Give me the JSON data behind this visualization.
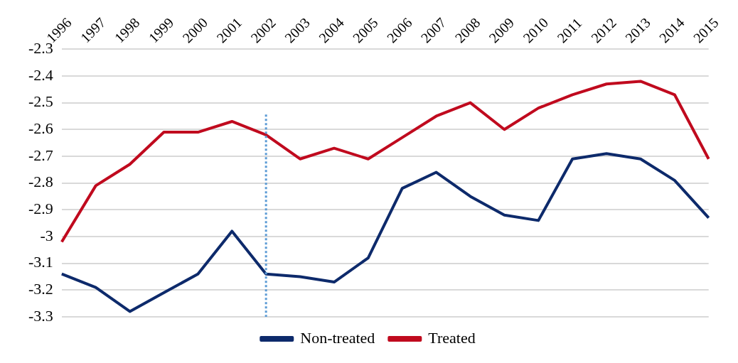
{
  "chart_data": {
    "type": "line",
    "categories": [
      "1996",
      "1997",
      "1998",
      "1999",
      "2000",
      "2001",
      "2002",
      "2003",
      "2004",
      "2005",
      "2006",
      "2007",
      "2008",
      "2009",
      "2010",
      "2011",
      "2012",
      "2013",
      "2014",
      "2015"
    ],
    "series": [
      {
        "name": "Non-treated",
        "color": "#0d2a6b",
        "values": [
          -3.14,
          -3.19,
          -3.28,
          -3.21,
          -3.14,
          -2.98,
          -3.14,
          -3.15,
          -3.17,
          -3.08,
          -2.82,
          -2.76,
          -2.85,
          -2.92,
          -2.94,
          -2.71,
          -2.69,
          -2.71,
          -2.79,
          -2.93
        ]
      },
      {
        "name": "Treated",
        "color": "#c00a1e",
        "values": [
          -3.02,
          -2.81,
          -2.73,
          -2.61,
          -2.61,
          -2.57,
          -2.62,
          -2.71,
          -2.67,
          -2.71,
          -2.63,
          -2.55,
          -2.5,
          -2.6,
          -2.52,
          -2.47,
          -2.43,
          -2.42,
          -2.47,
          -2.71
        ]
      }
    ],
    "ylim": [
      -3.3,
      -2.3
    ],
    "yticks": [
      -3.3,
      -3.2,
      -3.1,
      -3,
      -2.9,
      -2.8,
      -2.7,
      -2.6,
      -2.5,
      -2.4,
      -2.3
    ],
    "ref_lines": [
      {
        "axis": "x",
        "value": "2002",
        "color": "#5b9bd5",
        "line_style": "dotted"
      }
    ],
    "grid": "y",
    "legend": "bottom",
    "marker": "none",
    "line_style": "solid"
  }
}
